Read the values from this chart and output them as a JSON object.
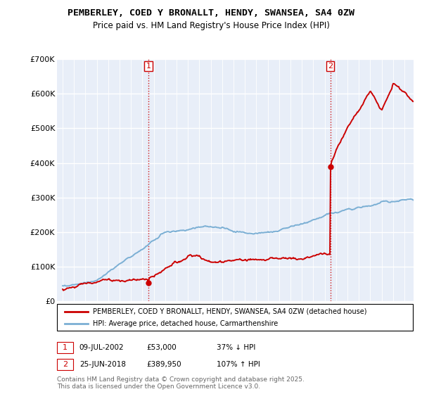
{
  "title1": "PEMBERLEY, COED Y BRONALLT, HENDY, SWANSEA, SA4 0ZW",
  "title2": "Price paid vs. HM Land Registry's House Price Index (HPI)",
  "ylim": [
    0,
    700000
  ],
  "yticks": [
    0,
    100000,
    200000,
    300000,
    400000,
    500000,
    600000,
    700000
  ],
  "ytick_labels": [
    "£0",
    "£100K",
    "£200K",
    "£300K",
    "£400K",
    "£500K",
    "£600K",
    "£700K"
  ],
  "xlim_start": 1994.5,
  "xlim_end": 2025.8,
  "xtick_start": 1995,
  "xtick_end": 2025,
  "point1": {
    "date_num": 2002.52,
    "price": 53000,
    "label": "1",
    "date_str": "09-JUL-2002",
    "price_str": "£53,000",
    "hpi_str": "37% ↓ HPI"
  },
  "point2": {
    "date_num": 2018.49,
    "price": 389950,
    "label": "2",
    "date_str": "25-JUN-2018",
    "price_str": "£389,950",
    "hpi_str": "107% ↑ HPI"
  },
  "legend_line1": "PEMBERLEY, COED Y BRONALLT, HENDY, SWANSEA, SA4 0ZW (detached house)",
  "legend_line2": "HPI: Average price, detached house, Carmarthenshire",
  "footnote": "Contains HM Land Registry data © Crown copyright and database right 2025.\nThis data is licensed under the Open Government Licence v3.0.",
  "line_color_red": "#cc0000",
  "line_color_blue": "#7bafd4",
  "background_color": "#e8eef8",
  "grid_color": "#ffffff"
}
